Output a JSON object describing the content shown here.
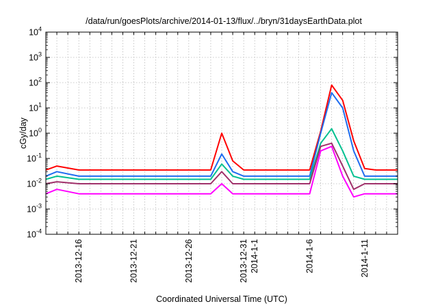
{
  "chart_data": {
    "type": "line",
    "title": "/data/run/goesPlots/archive/2014-01-13/flux/../bryn/31daysEarthData.plot",
    "xlabel": "Coordinated Universal Time (UTC)",
    "ylabel": "cGy/day",
    "yscale": "log",
    "ylim": [
      0.0001,
      10000
    ],
    "y_ticks": [
      {
        "value": 0.0001,
        "base": "10",
        "exp": "-4"
      },
      {
        "value": 0.001,
        "base": "10",
        "exp": "-3"
      },
      {
        "value": 0.01,
        "base": "10",
        "exp": "-2"
      },
      {
        "value": 0.1,
        "base": "10",
        "exp": "-1"
      },
      {
        "value": 1,
        "base": "10",
        "exp": "0"
      },
      {
        "value": 10,
        "base": "10",
        "exp": "1"
      },
      {
        "value": 100,
        "base": "10",
        "exp": "2"
      },
      {
        "value": 1000,
        "base": "10",
        "exp": "3"
      },
      {
        "value": 10000,
        "base": "10",
        "exp": "4"
      }
    ],
    "xlim": [
      "2013-12-13",
      "2014-01-14"
    ],
    "x_tick_labels": [
      "2013-12-16",
      "2013-12-21",
      "2013-12-26",
      "2013-12-31",
      "2014-1-1",
      "2014-1-6",
      "2014-1-11"
    ],
    "grid": true,
    "colors": [
      "#ff0000",
      "#1e6cf0",
      "#00c090",
      "#a0306a",
      "#ff00ff"
    ],
    "series": [
      {
        "color": "#ff0000",
        "x": [
          "2013-12-13",
          "2013-12-14",
          "2013-12-16",
          "2013-12-20",
          "2013-12-25",
          "2013-12-28",
          "2013-12-29",
          "2013-12-30",
          "2013-12-31",
          "2014-01-01",
          "2014-01-04",
          "2014-01-06",
          "2014-01-07",
          "2014-01-08",
          "2014-01-09",
          "2014-01-10",
          "2014-01-11",
          "2014-01-12",
          "2014-01-14"
        ],
        "values": [
          0.035,
          0.05,
          0.035,
          0.035,
          0.035,
          0.035,
          1.0,
          0.08,
          0.035,
          0.035,
          0.035,
          0.035,
          1.2,
          80,
          20,
          0.5,
          0.04,
          0.035,
          0.035
        ]
      },
      {
        "color": "#1e6cf0",
        "x": [
          "2013-12-13",
          "2013-12-14",
          "2013-12-16",
          "2013-12-20",
          "2013-12-25",
          "2013-12-28",
          "2013-12-29",
          "2013-12-30",
          "2013-12-31",
          "2014-01-01",
          "2014-01-04",
          "2014-01-06",
          "2014-01-07",
          "2014-01-08",
          "2014-01-09",
          "2014-01-10",
          "2014-01-11",
          "2014-01-12",
          "2014-01-14"
        ],
        "values": [
          0.02,
          0.03,
          0.02,
          0.02,
          0.02,
          0.02,
          0.15,
          0.03,
          0.02,
          0.02,
          0.02,
          0.02,
          1.0,
          40,
          10,
          0.2,
          0.02,
          0.02,
          0.02
        ]
      },
      {
        "color": "#00c090",
        "x": [
          "2013-12-13",
          "2013-12-14",
          "2013-12-16",
          "2013-12-20",
          "2013-12-25",
          "2013-12-28",
          "2013-12-29",
          "2013-12-30",
          "2013-12-31",
          "2014-01-01",
          "2014-01-04",
          "2014-01-06",
          "2014-01-07",
          "2014-01-08",
          "2014-01-09",
          "2014-01-10",
          "2014-01-11",
          "2014-01-12",
          "2014-01-14"
        ],
        "values": [
          0.015,
          0.02,
          0.015,
          0.015,
          0.015,
          0.015,
          0.06,
          0.02,
          0.015,
          0.015,
          0.015,
          0.015,
          0.4,
          1.5,
          0.2,
          0.02,
          0.015,
          0.015,
          0.015
        ]
      },
      {
        "color": "#a0306a",
        "x": [
          "2013-12-13",
          "2013-12-14",
          "2013-12-16",
          "2013-12-20",
          "2013-12-25",
          "2013-12-28",
          "2013-12-29",
          "2013-12-30",
          "2013-12-31",
          "2014-01-01",
          "2014-01-04",
          "2014-01-06",
          "2014-01-07",
          "2014-01-08",
          "2014-01-09",
          "2014-01-10",
          "2014-01-11",
          "2014-01-12",
          "2014-01-14"
        ],
        "values": [
          0.01,
          0.012,
          0.01,
          0.01,
          0.01,
          0.01,
          0.03,
          0.01,
          0.01,
          0.01,
          0.01,
          0.01,
          0.3,
          0.4,
          0.05,
          0.006,
          0.01,
          0.01,
          0.01
        ]
      },
      {
        "color": "#ff00ff",
        "x": [
          "2013-12-13",
          "2013-12-14",
          "2013-12-16",
          "2013-12-20",
          "2013-12-25",
          "2013-12-28",
          "2013-12-29",
          "2013-12-30",
          "2013-12-31",
          "2014-01-01",
          "2014-01-04",
          "2014-01-06",
          "2014-01-07",
          "2014-01-08",
          "2014-01-09",
          "2014-01-10",
          "2014-01-11",
          "2014-01-12",
          "2014-01-14"
        ],
        "values": [
          0.004,
          0.006,
          0.004,
          0.004,
          0.004,
          0.004,
          0.01,
          0.004,
          0.004,
          0.004,
          0.004,
          0.004,
          0.2,
          0.3,
          0.02,
          0.003,
          0.004,
          0.004,
          0.004
        ]
      }
    ]
  }
}
